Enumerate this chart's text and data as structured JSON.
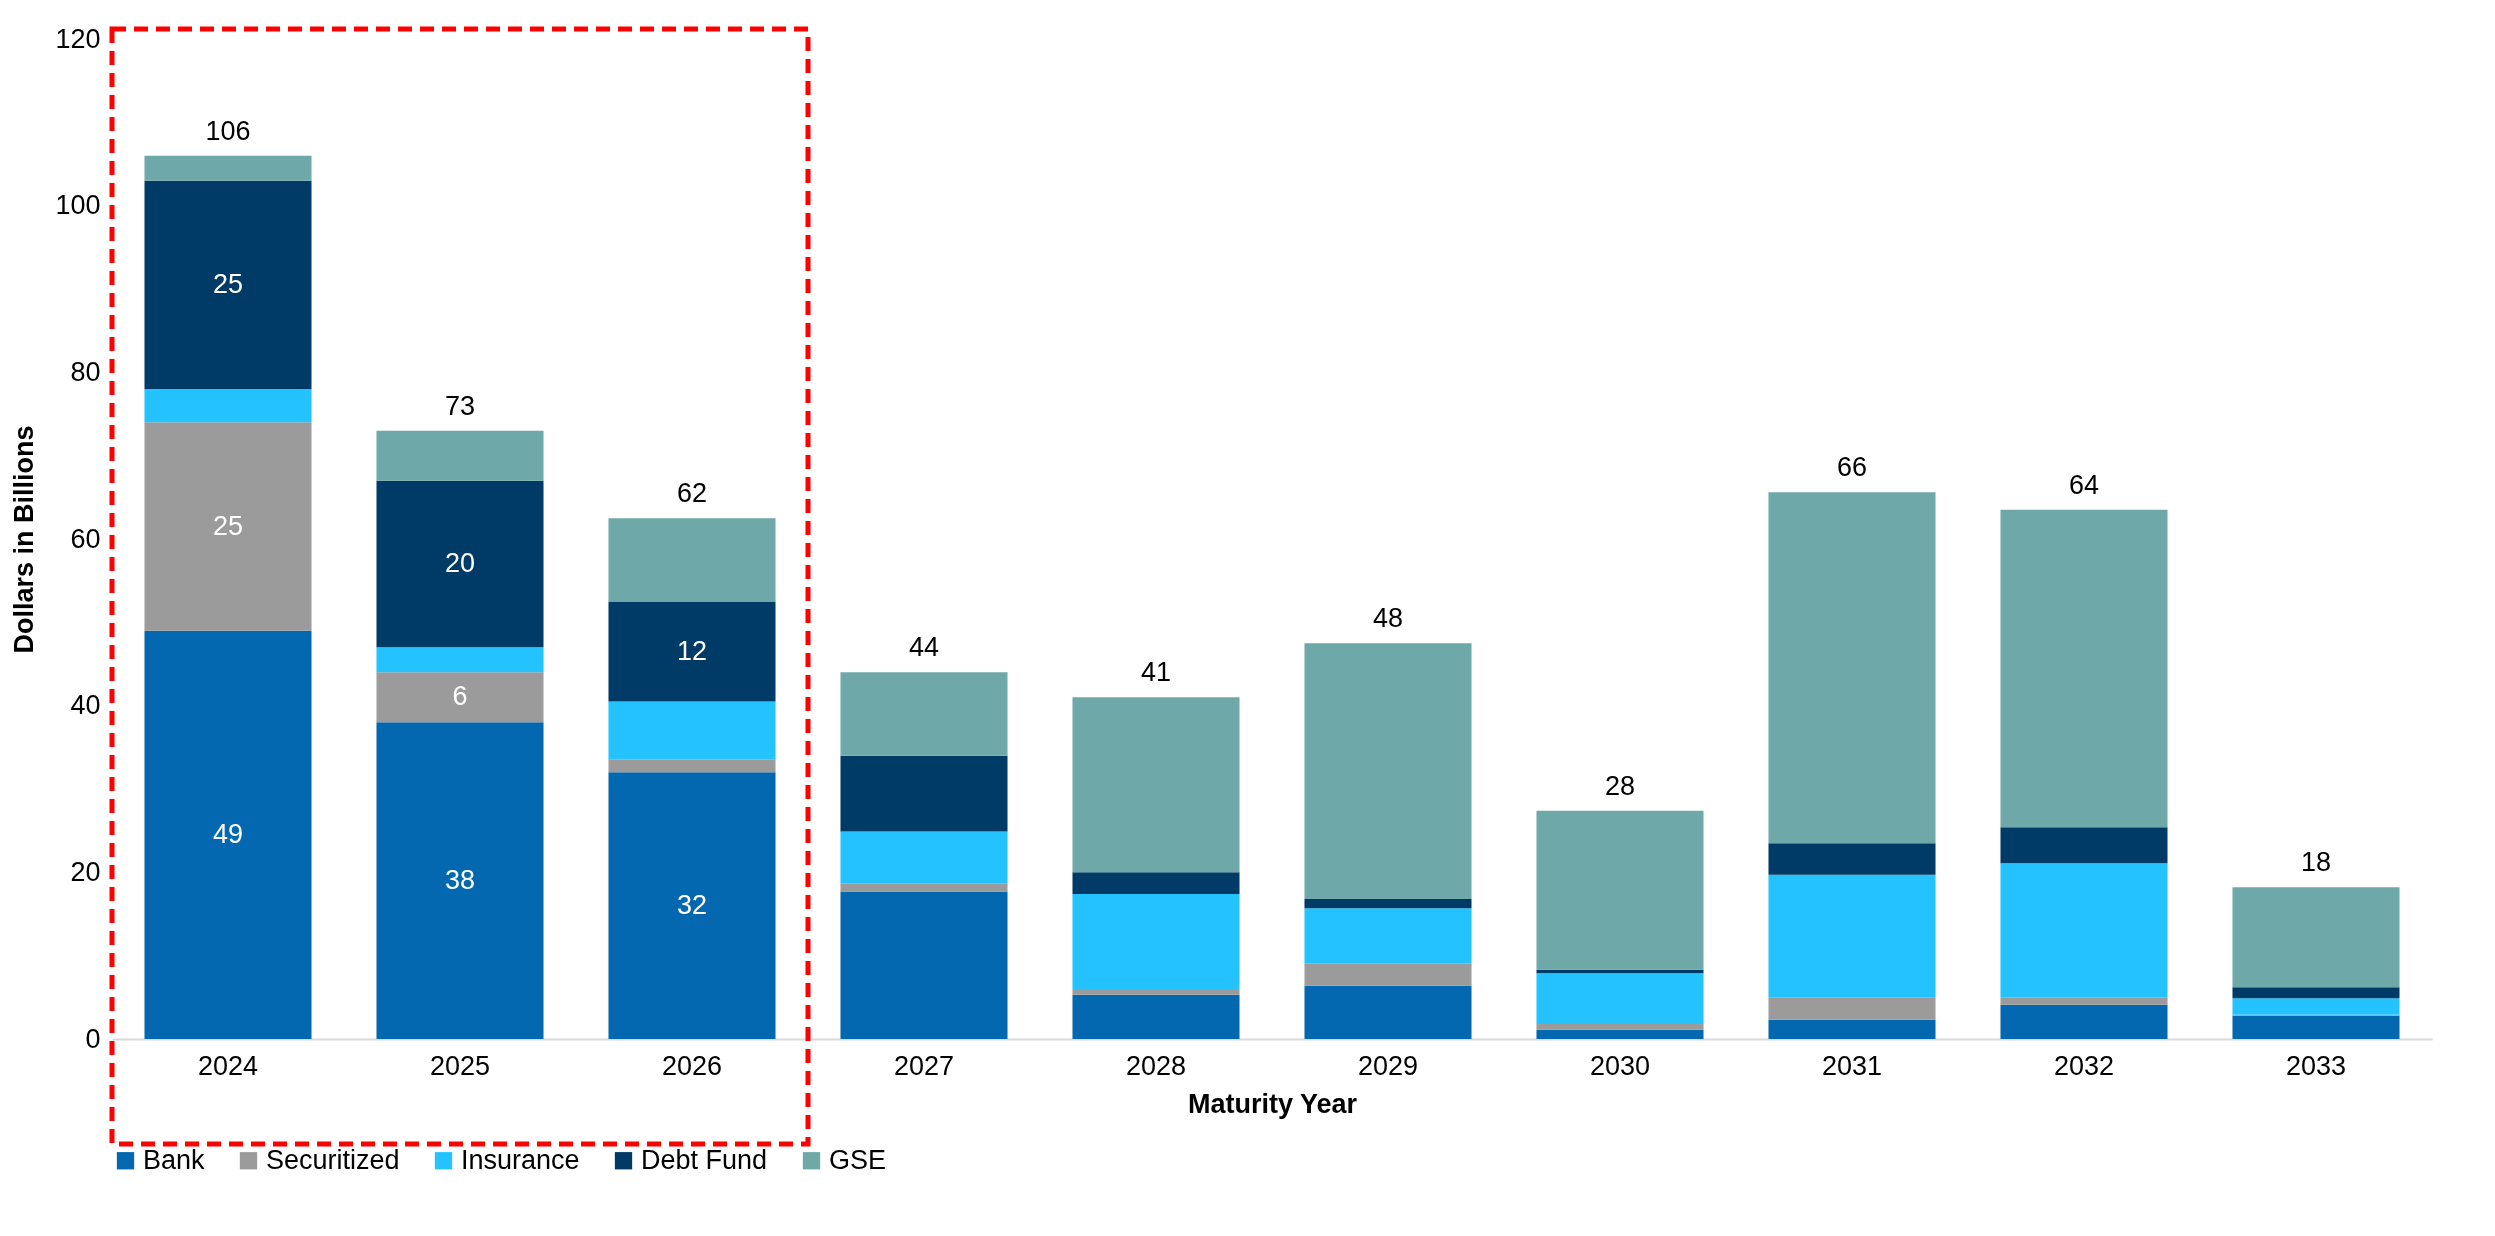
{
  "chart_data": {
    "type": "bar",
    "stacked": true,
    "xlabel": "Maturity Year",
    "ylabel": "Dollars in Billions",
    "categories": [
      "2024",
      "2025",
      "2026",
      "2027",
      "2028",
      "2029",
      "2030",
      "2031",
      "2032",
      "2033"
    ],
    "series": [
      {
        "name": "Bank",
        "color": "#0468b1",
        "values": [
          49,
          38,
          32,
          17.7,
          5.3,
          6.4,
          1.1,
          2.3,
          4.1,
          2.8
        ],
        "value_labels": [
          "49",
          "38",
          "32",
          null,
          null,
          null,
          null,
          null,
          null,
          null
        ]
      },
      {
        "name": "Securitized",
        "color": "#9b9b9b",
        "values": [
          25,
          6,
          1.5,
          1,
          0.7,
          2.7,
          0.7,
          2.7,
          0.9,
          0.1
        ],
        "value_labels": [
          "25",
          "6",
          null,
          null,
          null,
          null,
          null,
          null,
          null,
          null
        ]
      },
      {
        "name": "Insurance",
        "color": "#24c3ff",
        "values": [
          4,
          3,
          7,
          6.2,
          11.4,
          6.6,
          6.1,
          14.7,
          16.1,
          2
        ],
        "value_labels": [
          null,
          null,
          null,
          null,
          null,
          null,
          null,
          null,
          null,
          null
        ]
      },
      {
        "name": "Debt Fund",
        "color": "#003a66",
        "values": [
          25,
          20,
          12,
          9.1,
          2.6,
          1.1,
          0.4,
          3.8,
          4.3,
          1.3
        ],
        "value_labels": [
          "25",
          "20",
          "12",
          null,
          null,
          null,
          null,
          null,
          null,
          null
        ]
      },
      {
        "name": "GSE",
        "color": "#6fa8a8",
        "values": [
          3,
          6,
          10,
          10,
          21,
          30.7,
          19.1,
          42.1,
          38.1,
          12
        ],
        "value_labels": [
          null,
          null,
          null,
          null,
          null,
          null,
          null,
          null,
          null,
          null
        ]
      }
    ],
    "totals": [
      "106",
      "73",
      "62",
      "44",
      "41",
      "48",
      "28",
      "66",
      "64",
      "18"
    ],
    "ylim": [
      0,
      120
    ],
    "yticks": [
      0,
      20,
      40,
      60,
      80,
      100,
      120
    ],
    "grid": false,
    "legend": "bottom"
  }
}
